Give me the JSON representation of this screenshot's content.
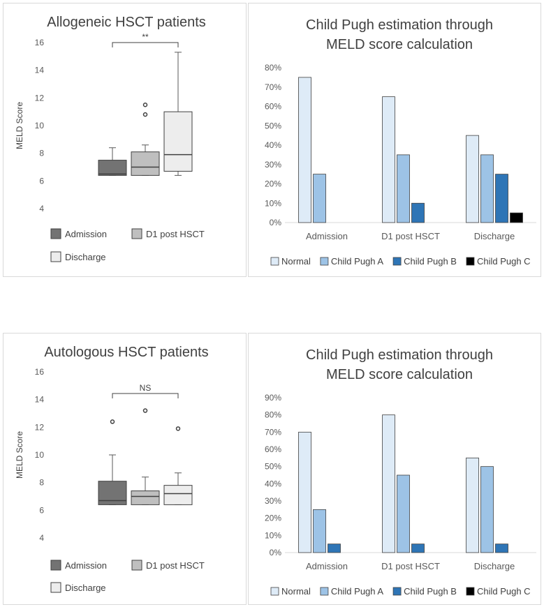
{
  "chart_data": [
    {
      "type": "box",
      "title": "Allogeneic HSCT patients",
      "ylabel": "MELD Score",
      "ylim": [
        4,
        16
      ],
      "yticks": [
        4,
        6,
        8,
        10,
        12,
        14,
        16
      ],
      "grid": false,
      "significance": {
        "label": "**",
        "from": "Admission",
        "to": "Discharge"
      },
      "series": [
        {
          "name": "Admission",
          "color": "#737373",
          "whisker_low": 6.4,
          "q1": 6.4,
          "median": 6.5,
          "q3": 7.5,
          "whisker_high": 8.4,
          "outliers": []
        },
        {
          "name": "D1 post HSCT",
          "color": "#bfbfbf",
          "whisker_low": 6.4,
          "q1": 6.4,
          "median": 7.0,
          "q3": 8.1,
          "whisker_high": 8.6,
          "outliers": [
            10.8,
            11.5
          ]
        },
        {
          "name": "Discharge",
          "color": "#ededed",
          "whisker_low": 6.4,
          "q1": 6.7,
          "median": 7.9,
          "q3": 11.0,
          "whisker_high": 15.3,
          "outliers": []
        }
      ]
    },
    {
      "type": "bar",
      "title": "Child Pugh estimation through MELD score calculation",
      "title_lines": [
        "Child Pugh estimation through",
        "MELD score calculation"
      ],
      "categories": [
        "Admission",
        "D1 post HSCT",
        "Discharge"
      ],
      "ylim": [
        0,
        80
      ],
      "yticks": [
        0,
        10,
        20,
        30,
        40,
        50,
        60,
        70,
        80
      ],
      "unit": "%",
      "legend": "bottom",
      "series": [
        {
          "name": "Normal",
          "color": "#deebf7",
          "values": [
            75,
            65,
            45
          ]
        },
        {
          "name": "Child Pugh A",
          "color": "#9dc3e6",
          "values": [
            25,
            35,
            35
          ]
        },
        {
          "name": "Child Pugh B",
          "color": "#2e75b6",
          "values": [
            0,
            10,
            25
          ]
        },
        {
          "name": "Child Pugh C",
          "color": "#000000",
          "values": [
            0,
            0,
            5
          ]
        }
      ]
    },
    {
      "type": "box",
      "title": "Autologous HSCT patients",
      "ylabel": "MELD Score",
      "ylim": [
        4,
        16
      ],
      "yticks": [
        4,
        6,
        8,
        10,
        12,
        14,
        16
      ],
      "grid": false,
      "significance": {
        "label": "NS",
        "from": "Admission",
        "to": "Discharge"
      },
      "series": [
        {
          "name": "Admission",
          "color": "#737373",
          "whisker_low": 6.4,
          "q1": 6.4,
          "median": 6.7,
          "q3": 8.1,
          "whisker_high": 10.0,
          "outliers": [
            12.4
          ]
        },
        {
          "name": "D1 post HSCT",
          "color": "#bfbfbf",
          "whisker_low": 6.4,
          "q1": 6.4,
          "median": 7.0,
          "q3": 7.4,
          "whisker_high": 8.4,
          "outliers": [
            13.2
          ]
        },
        {
          "name": "Discharge",
          "color": "#ededed",
          "whisker_low": 6.4,
          "q1": 6.4,
          "median": 7.2,
          "q3": 7.8,
          "whisker_high": 8.7,
          "outliers": [
            11.9
          ]
        }
      ]
    },
    {
      "type": "bar",
      "title": "Child Pugh estimation through MELD score calculation",
      "title_lines": [
        "Child Pugh estimation through",
        "MELD score calculation"
      ],
      "categories": [
        "Admission",
        "D1 post HSCT",
        "Discharge"
      ],
      "ylim": [
        0,
        90
      ],
      "yticks": [
        0,
        10,
        20,
        30,
        40,
        50,
        60,
        70,
        80,
        90
      ],
      "unit": "%",
      "legend": "bottom",
      "series": [
        {
          "name": "Normal",
          "color": "#deebf7",
          "values": [
            70,
            80,
            55
          ]
        },
        {
          "name": "Child Pugh A",
          "color": "#9dc3e6",
          "values": [
            25,
            45,
            50
          ]
        },
        {
          "name": "Child Pugh B",
          "color": "#2e75b6",
          "values": [
            5,
            5,
            5
          ]
        },
        {
          "name": "Child Pugh C",
          "color": "#000000",
          "values": [
            0,
            0,
            0
          ]
        }
      ]
    }
  ]
}
